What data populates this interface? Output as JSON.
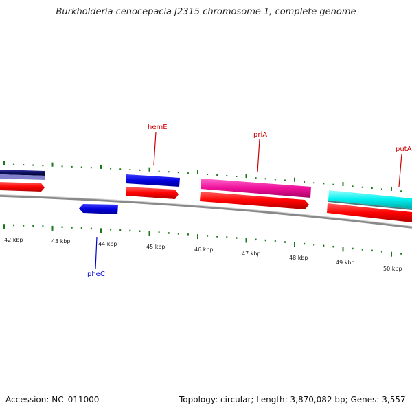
{
  "title": "Burkholderia cenocepacia J2315 chromosome 1, complete genome",
  "footer": {
    "accession": "Accession: NC_011000",
    "summary": "Topology: circular; Length: 3,870,082 bp; Genes: 3,557"
  },
  "ruler": {
    "ticks": [
      "42 kbp",
      "43 kbp",
      "44 kbp",
      "45 kbp",
      "46 kbp",
      "47 kbp",
      "48 kbp",
      "49 kbp",
      "50 kbp"
    ]
  },
  "gene_labels": {
    "hemE": "hemE",
    "priA": "priA",
    "putA": "putA",
    "pheC": "pheC"
  },
  "colors": {
    "forward_label": "#cc0000",
    "reverse_label": "#0000cc",
    "tick": "#1a7a1a",
    "cds_red": "#ff0000",
    "blue": "#0000dd",
    "navy": "#101060",
    "magenta": "#ee1199",
    "cyan": "#00eeee",
    "lavender": "#8080cc",
    "backbone": "#7a7a7a"
  }
}
